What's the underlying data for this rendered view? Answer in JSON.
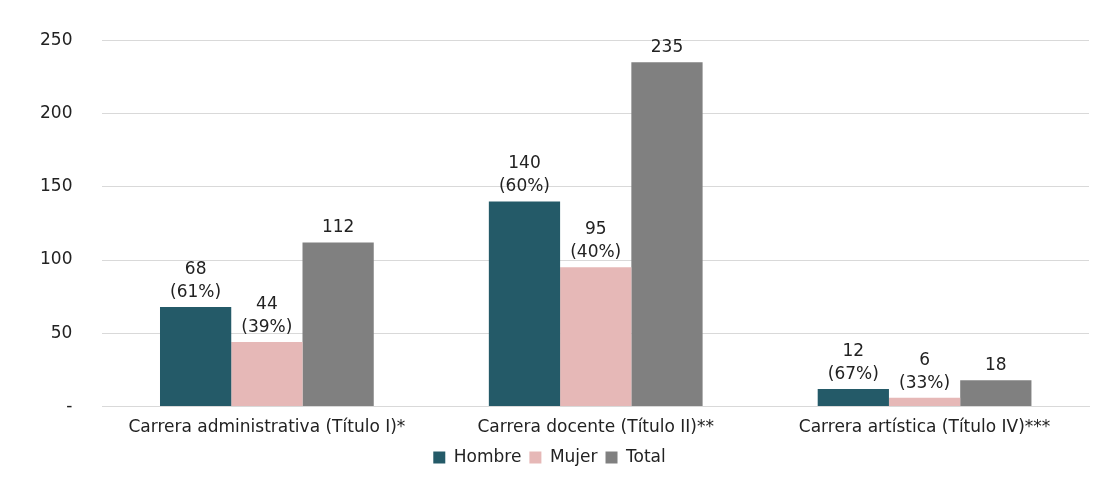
{
  "chart_data": {
    "type": "bar",
    "categories": [
      "Carrera administrativa (Título I)*",
      "Carrera docente (Título II)**",
      "Carrera artística (Título IV)***"
    ],
    "series": [
      {
        "name": "Hombre",
        "color": "#245a68",
        "values": [
          68,
          140,
          12
        ],
        "value_labels": [
          "68\n(61%)",
          "140\n(60%)",
          "12\n(67%)"
        ]
      },
      {
        "name": "Mujer",
        "color": "#e6b8b7",
        "values": [
          44,
          95,
          6
        ],
        "value_labels": [
          "44\n(39%)",
          "95\n(40%)",
          "6\n(33%)"
        ]
      },
      {
        "name": "Total",
        "color": "#808080",
        "values": [
          112,
          235,
          18
        ],
        "value_labels": [
          "112",
          "235",
          "18"
        ]
      }
    ],
    "ylim": [
      0,
      250
    ],
    "yticks": [
      {
        "value": 0,
        "label": "-"
      },
      50,
      100,
      150,
      200,
      250
    ],
    "grid": "y",
    "legend": "bottom"
  }
}
